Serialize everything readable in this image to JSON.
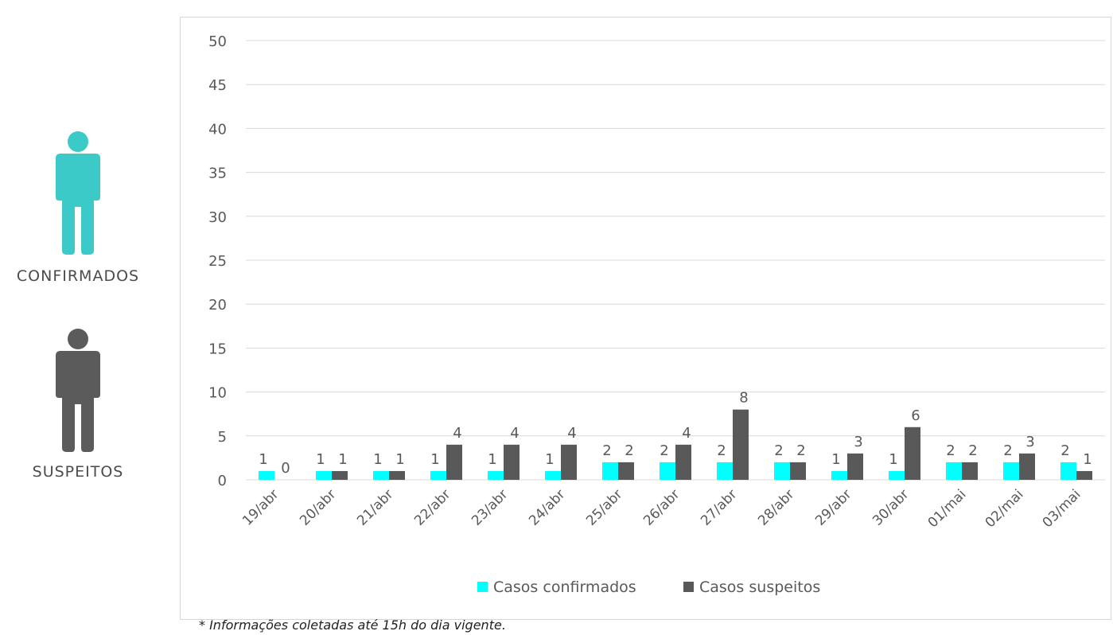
{
  "legend_panel": {
    "confirmed_label": "CONFIRMADOS",
    "suspected_label": "SUSPEITOS"
  },
  "colors": {
    "confirmed": "#00ffff",
    "suspected": "#595959",
    "confirmed_icon": "#3ccac8",
    "suspected_icon": "#5b5b5b",
    "grid": "#d9d9d9",
    "text": "#595959"
  },
  "footnote": "* Informações coletadas até 15h do dia vigente.",
  "chart_data": {
    "type": "bar",
    "categories": [
      "19/abr",
      "20/abr",
      "21/abr",
      "22/abr",
      "23/abr",
      "24/abr",
      "25/abr",
      "26/abr",
      "27/abr",
      "28/abr",
      "29/abr",
      "30/abr",
      "01/mai",
      "02/mai",
      "03/mai"
    ],
    "series": [
      {
        "name": "Casos confirmados",
        "values": [
          1,
          1,
          1,
          1,
          1,
          1,
          2,
          2,
          2,
          2,
          1,
          1,
          2,
          2,
          2
        ]
      },
      {
        "name": "Casos suspeitos",
        "values": [
          0,
          1,
          1,
          4,
          4,
          4,
          2,
          4,
          8,
          2,
          3,
          6,
          2,
          3,
          1
        ]
      }
    ],
    "ylim": [
      0,
      50
    ],
    "yticks": [
      0,
      5,
      10,
      15,
      20,
      25,
      30,
      35,
      40,
      45,
      50
    ],
    "grid": true,
    "legend_position": "bottom",
    "title": "",
    "xlabel": "",
    "ylabel": ""
  }
}
